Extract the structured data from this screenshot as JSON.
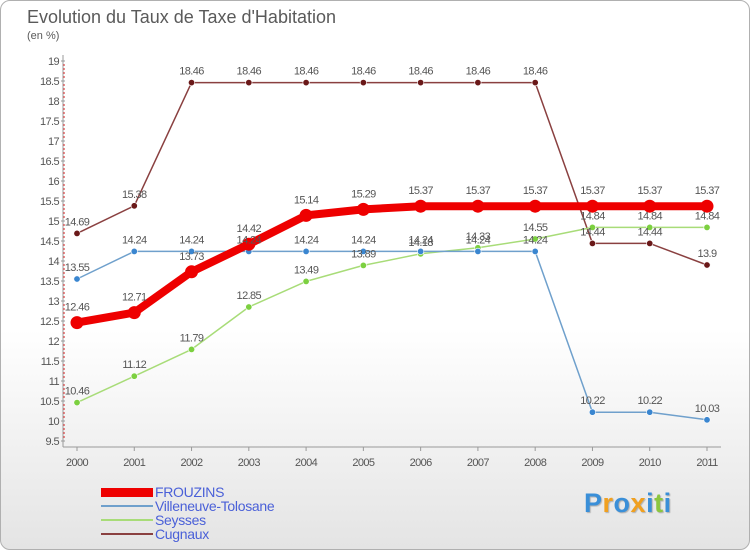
{
  "title": "Evolution du Taux de Taxe d'Habitation",
  "subtitle": "(en %)",
  "logo": {
    "text": "Proxiti",
    "letters": [
      "P",
      "r",
      "o",
      "x",
      "i",
      "t",
      "i"
    ],
    "colors": [
      "#3a8fd8",
      "#f0a020",
      "#3a8fd8",
      "#f0a020",
      "#3a8fd8",
      "#8cc63f",
      "#3a8fd8"
    ]
  },
  "chart_data": {
    "type": "line",
    "title": "Evolution du Taux de Taxe d'Habitation",
    "ylabel": "(en %)",
    "x": [
      "2000",
      "2001",
      "2002",
      "2003",
      "2004",
      "2005",
      "2006",
      "2007",
      "2008",
      "2009",
      "2010",
      "2011"
    ],
    "ylim": [
      9.5,
      19
    ],
    "yticks": [
      "9.5",
      "10",
      "10.5",
      "11",
      "11.5",
      "12",
      "12.5",
      "13",
      "13.5",
      "14",
      "14.5",
      "15",
      "15.5",
      "16",
      "16.5",
      "17",
      "17.5",
      "18",
      "18.5",
      "19"
    ],
    "grid": false,
    "legend_position": "bottom-left",
    "series": [
      {
        "name": "FROUZINS",
        "color": "#ee0000",
        "values": [
          12.46,
          12.71,
          13.73,
          14.42,
          15.14,
          15.29,
          15.37,
          15.37,
          15.37,
          15.37,
          15.37,
          15.37
        ],
        "labels": [
          "12.46",
          "12.71",
          "13.73",
          "14.42",
          "15.14",
          "15.29",
          "15.37",
          "15.37",
          "15.37",
          "15.37",
          "15.37",
          "15.37"
        ]
      },
      {
        "name": "Villeneuve-Tolosane",
        "color": "#6fa0cc",
        "marker": "#3a86d0",
        "values": [
          13.55,
          14.24,
          14.24,
          14.24,
          14.24,
          14.24,
          14.24,
          14.24,
          14.24,
          10.22,
          10.22,
          10.03
        ],
        "labels": [
          "13.55",
          "14.24",
          "14.24",
          "14.24",
          "14.24",
          "14.24",
          "14.24",
          "14.24",
          "14.24",
          "10.22",
          "10.22",
          "10.03"
        ]
      },
      {
        "name": "Seysses",
        "color": "#a8dc78",
        "marker": "#7cd040",
        "values": [
          10.46,
          11.12,
          11.79,
          12.85,
          13.49,
          13.89,
          14.18,
          14.33,
          14.55,
          14.84,
          14.84,
          14.84
        ],
        "labels": [
          "10.46",
          "11.12",
          "11.79",
          "12.85",
          "13.49",
          "13.89",
          "14.18",
          "14.33",
          "14.55",
          "14.84",
          "14.84",
          "14.84"
        ]
      },
      {
        "name": "Cugnaux",
        "color": "#8a4040",
        "marker": "#6a1818",
        "values": [
          14.69,
          15.38,
          18.46,
          18.46,
          18.46,
          18.46,
          18.46,
          18.46,
          18.46,
          14.44,
          14.44,
          13.9
        ],
        "labels": [
          "14.69",
          "15.38",
          "18.46",
          "18.46",
          "18.46",
          "18.46",
          "18.46",
          "18.46",
          "18.46",
          "14.44",
          "14.44",
          "13.9"
        ]
      }
    ]
  }
}
